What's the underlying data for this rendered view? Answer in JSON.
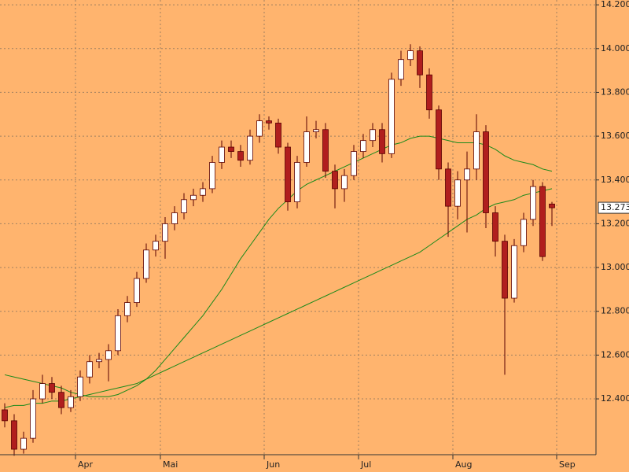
{
  "chart_data": {
    "type": "candlestick",
    "background": "#ffb46e",
    "grid": true,
    "up_color": "#ffffff",
    "down_color": "#b01e1e",
    "wick_color": "#5a0000",
    "categories": [
      null,
      null,
      null,
      null,
      null,
      null,
      null,
      null,
      "Apr",
      null,
      null,
      null,
      null,
      null,
      null,
      null,
      null,
      "Mai",
      null,
      null,
      null,
      null,
      null,
      null,
      null,
      null,
      null,
      null,
      "Jun",
      null,
      null,
      null,
      null,
      null,
      null,
      null,
      null,
      null,
      "Jul",
      null,
      null,
      null,
      null,
      null,
      null,
      null,
      null,
      null,
      "Aug",
      null,
      null,
      null,
      null,
      null,
      null,
      null,
      null,
      null,
      null,
      "Sep"
    ],
    "open": [
      12.35,
      12.3,
      12.17,
      12.22,
      12.4,
      12.47,
      12.43,
      12.36,
      12.41,
      12.5,
      12.57,
      12.58,
      12.62,
      12.78,
      12.84,
      12.95,
      13.08,
      13.12,
      13.2,
      13.25,
      13.31,
      13.33,
      13.36,
      13.48,
      13.55,
      13.53,
      13.49,
      13.6,
      13.67,
      13.66,
      13.55,
      13.3,
      13.48,
      13.62,
      13.63,
      13.44,
      13.36,
      13.42,
      13.53,
      13.58,
      13.63,
      13.52,
      13.86,
      13.95,
      13.99,
      13.88,
      13.72,
      13.45,
      13.28,
      13.4,
      13.45,
      13.62,
      13.25,
      13.12,
      12.86,
      13.1,
      13.22,
      13.37,
      13.29,
      null
    ],
    "high": [
      12.38,
      12.33,
      12.25,
      12.44,
      12.51,
      12.5,
      12.46,
      12.44,
      12.53,
      12.6,
      12.61,
      12.65,
      12.81,
      12.87,
      12.98,
      13.11,
      13.15,
      13.23,
      13.28,
      13.34,
      13.36,
      13.39,
      13.51,
      13.58,
      13.58,
      13.56,
      13.63,
      13.7,
      13.69,
      13.68,
      13.57,
      13.51,
      13.69,
      13.67,
      13.66,
      13.47,
      13.45,
      13.56,
      13.61,
      13.66,
      13.66,
      13.89,
      13.99,
      14.02,
      14.01,
      13.91,
      13.74,
      13.48,
      13.44,
      13.53,
      13.7,
      13.65,
      13.28,
      13.15,
      13.13,
      13.25,
      13.4,
      13.39,
      13.3,
      null
    ],
    "low": [
      12.27,
      12.14,
      12.15,
      12.2,
      12.38,
      12.4,
      12.33,
      12.34,
      12.39,
      12.47,
      12.54,
      12.48,
      12.6,
      12.75,
      12.82,
      12.93,
      13.05,
      13.04,
      13.17,
      13.22,
      13.28,
      13.3,
      13.34,
      13.45,
      13.5,
      13.46,
      13.47,
      13.57,
      13.63,
      13.52,
      13.26,
      13.27,
      13.46,
      13.59,
      13.41,
      13.27,
      13.3,
      13.4,
      13.5,
      13.55,
      13.48,
      13.5,
      13.83,
      13.92,
      13.82,
      13.68,
      13.4,
      13.14,
      13.22,
      13.16,
      13.4,
      13.18,
      13.05,
      12.51,
      12.84,
      13.07,
      13.19,
      13.03,
      13.19,
      null
    ],
    "close": [
      12.3,
      12.17,
      12.22,
      12.4,
      12.47,
      12.43,
      12.36,
      12.41,
      12.5,
      12.57,
      12.58,
      12.62,
      12.78,
      12.84,
      12.95,
      13.08,
      13.12,
      13.2,
      13.25,
      13.31,
      13.33,
      13.36,
      13.48,
      13.55,
      13.53,
      13.49,
      13.6,
      13.67,
      13.66,
      13.55,
      13.3,
      13.48,
      13.62,
      13.63,
      13.44,
      13.36,
      13.42,
      13.53,
      13.58,
      13.63,
      13.52,
      13.86,
      13.95,
      13.99,
      13.88,
      13.72,
      13.45,
      13.28,
      13.4,
      13.45,
      13.62,
      13.25,
      13.12,
      12.86,
      13.1,
      13.22,
      13.37,
      13.05,
      13.273,
      null
    ],
    "series": [
      {
        "color": "#1a8a1a",
        "values": [
          12.51,
          12.5,
          12.49,
          12.48,
          12.47,
          12.46,
          12.45,
          12.43,
          12.42,
          12.41,
          12.41,
          12.41,
          12.42,
          12.44,
          12.46,
          12.49,
          12.53,
          12.58,
          12.63,
          12.68,
          12.73,
          12.78,
          12.84,
          12.9,
          12.97,
          13.04,
          13.1,
          13.16,
          13.22,
          13.27,
          13.31,
          13.35,
          13.38,
          13.4,
          13.42,
          13.44,
          13.46,
          13.48,
          13.5,
          13.52,
          13.54,
          13.56,
          13.57,
          13.59,
          13.6,
          13.6,
          13.59,
          13.58,
          13.57,
          13.57,
          13.57,
          13.56,
          13.54,
          13.51,
          13.49,
          13.48,
          13.47,
          13.45,
          13.44,
          null
        ]
      },
      {
        "color": "#1a8a1a",
        "values": [
          12.36,
          12.37,
          12.37,
          12.38,
          12.38,
          12.39,
          12.39,
          12.4,
          12.41,
          12.42,
          12.43,
          12.44,
          12.45,
          12.46,
          12.47,
          12.49,
          12.51,
          12.53,
          12.55,
          12.57,
          12.59,
          12.61,
          12.63,
          12.65,
          12.67,
          12.69,
          12.71,
          12.73,
          12.75,
          12.77,
          12.79,
          12.81,
          12.83,
          12.85,
          12.87,
          12.89,
          12.91,
          12.93,
          12.95,
          12.97,
          12.99,
          13.01,
          13.03,
          13.05,
          13.07,
          13.1,
          13.13,
          13.16,
          13.19,
          13.22,
          13.24,
          13.27,
          13.29,
          13.3,
          13.31,
          13.33,
          13.34,
          13.35,
          13.36,
          null
        ]
      }
    ],
    "ylim": [
      12.145,
      14.222
    ],
    "yticks": [
      {
        "value": 12.4,
        "label": "12.400"
      },
      {
        "value": 12.6,
        "label": "12.600"
      },
      {
        "value": 12.8,
        "label": "12.800"
      },
      {
        "value": 13.0,
        "label": "13.000"
      },
      {
        "value": 13.2,
        "label": "13.200"
      },
      {
        "value": 13.4,
        "label": "13.400"
      },
      {
        "value": 13.6,
        "label": "13.600"
      },
      {
        "value": 13.8,
        "label": "13.800"
      },
      {
        "value": 14.0,
        "label": "14.000"
      },
      {
        "value": 14.2,
        "label": "14.200"
      }
    ]
  }
}
